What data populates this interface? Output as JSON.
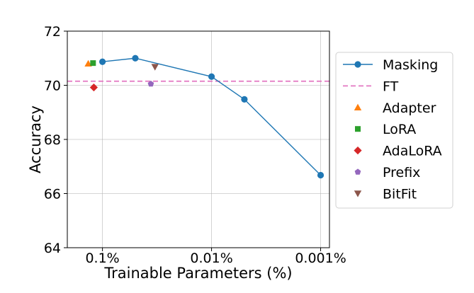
{
  "chart_data": {
    "type": "scatter",
    "xscale": "log",
    "xreversed": true,
    "xlim": [
      0.21,
      0.00083
    ],
    "ylim": [
      64,
      72
    ],
    "xlabel": "Trainable Parameters (%)",
    "ylabel": "Accuracy",
    "xticks": [
      {
        "value": 0.1,
        "label": "0.1%"
      },
      {
        "value": 0.01,
        "label": "0.01%"
      },
      {
        "value": 0.001,
        "label": "0.001%"
      }
    ],
    "yticks": [
      {
        "value": 64,
        "label": "64"
      },
      {
        "value": 66,
        "label": "66"
      },
      {
        "value": 68,
        "label": "68"
      },
      {
        "value": 70,
        "label": "70"
      },
      {
        "value": 72,
        "label": "72"
      }
    ],
    "grid": true,
    "legend_position": "right-outside",
    "series": [
      {
        "name": "Masking",
        "kind": "line",
        "marker": "circle",
        "color": "#1f77b4",
        "x": [
          0.1,
          0.05,
          0.01,
          0.005,
          0.001
        ],
        "y": [
          70.87,
          71.0,
          70.32,
          69.48,
          66.68
        ]
      },
      {
        "name": "FT",
        "kind": "hline",
        "color": "#e377c2",
        "y": 70.15
      },
      {
        "name": "Adapter",
        "kind": "point",
        "marker": "triangle-up",
        "color": "#ff7f0e",
        "x": [
          0.135
        ],
        "y": [
          70.8
        ]
      },
      {
        "name": "LoRA",
        "kind": "point",
        "marker": "square",
        "color": "#2ca02c",
        "x": [
          0.122
        ],
        "y": [
          70.82
        ]
      },
      {
        "name": "AdaLoRA",
        "kind": "point",
        "marker": "diamond",
        "color": "#d62728",
        "x": [
          0.12
        ],
        "y": [
          69.92
        ]
      },
      {
        "name": "Prefix",
        "kind": "point",
        "marker": "pentagon",
        "color": "#9467bd",
        "x": [
          0.036
        ],
        "y": [
          70.05
        ]
      },
      {
        "name": "BitFit",
        "kind": "point",
        "marker": "triangle-down",
        "color": "#8c564b",
        "x": [
          0.033
        ],
        "y": [
          70.68
        ]
      }
    ]
  }
}
